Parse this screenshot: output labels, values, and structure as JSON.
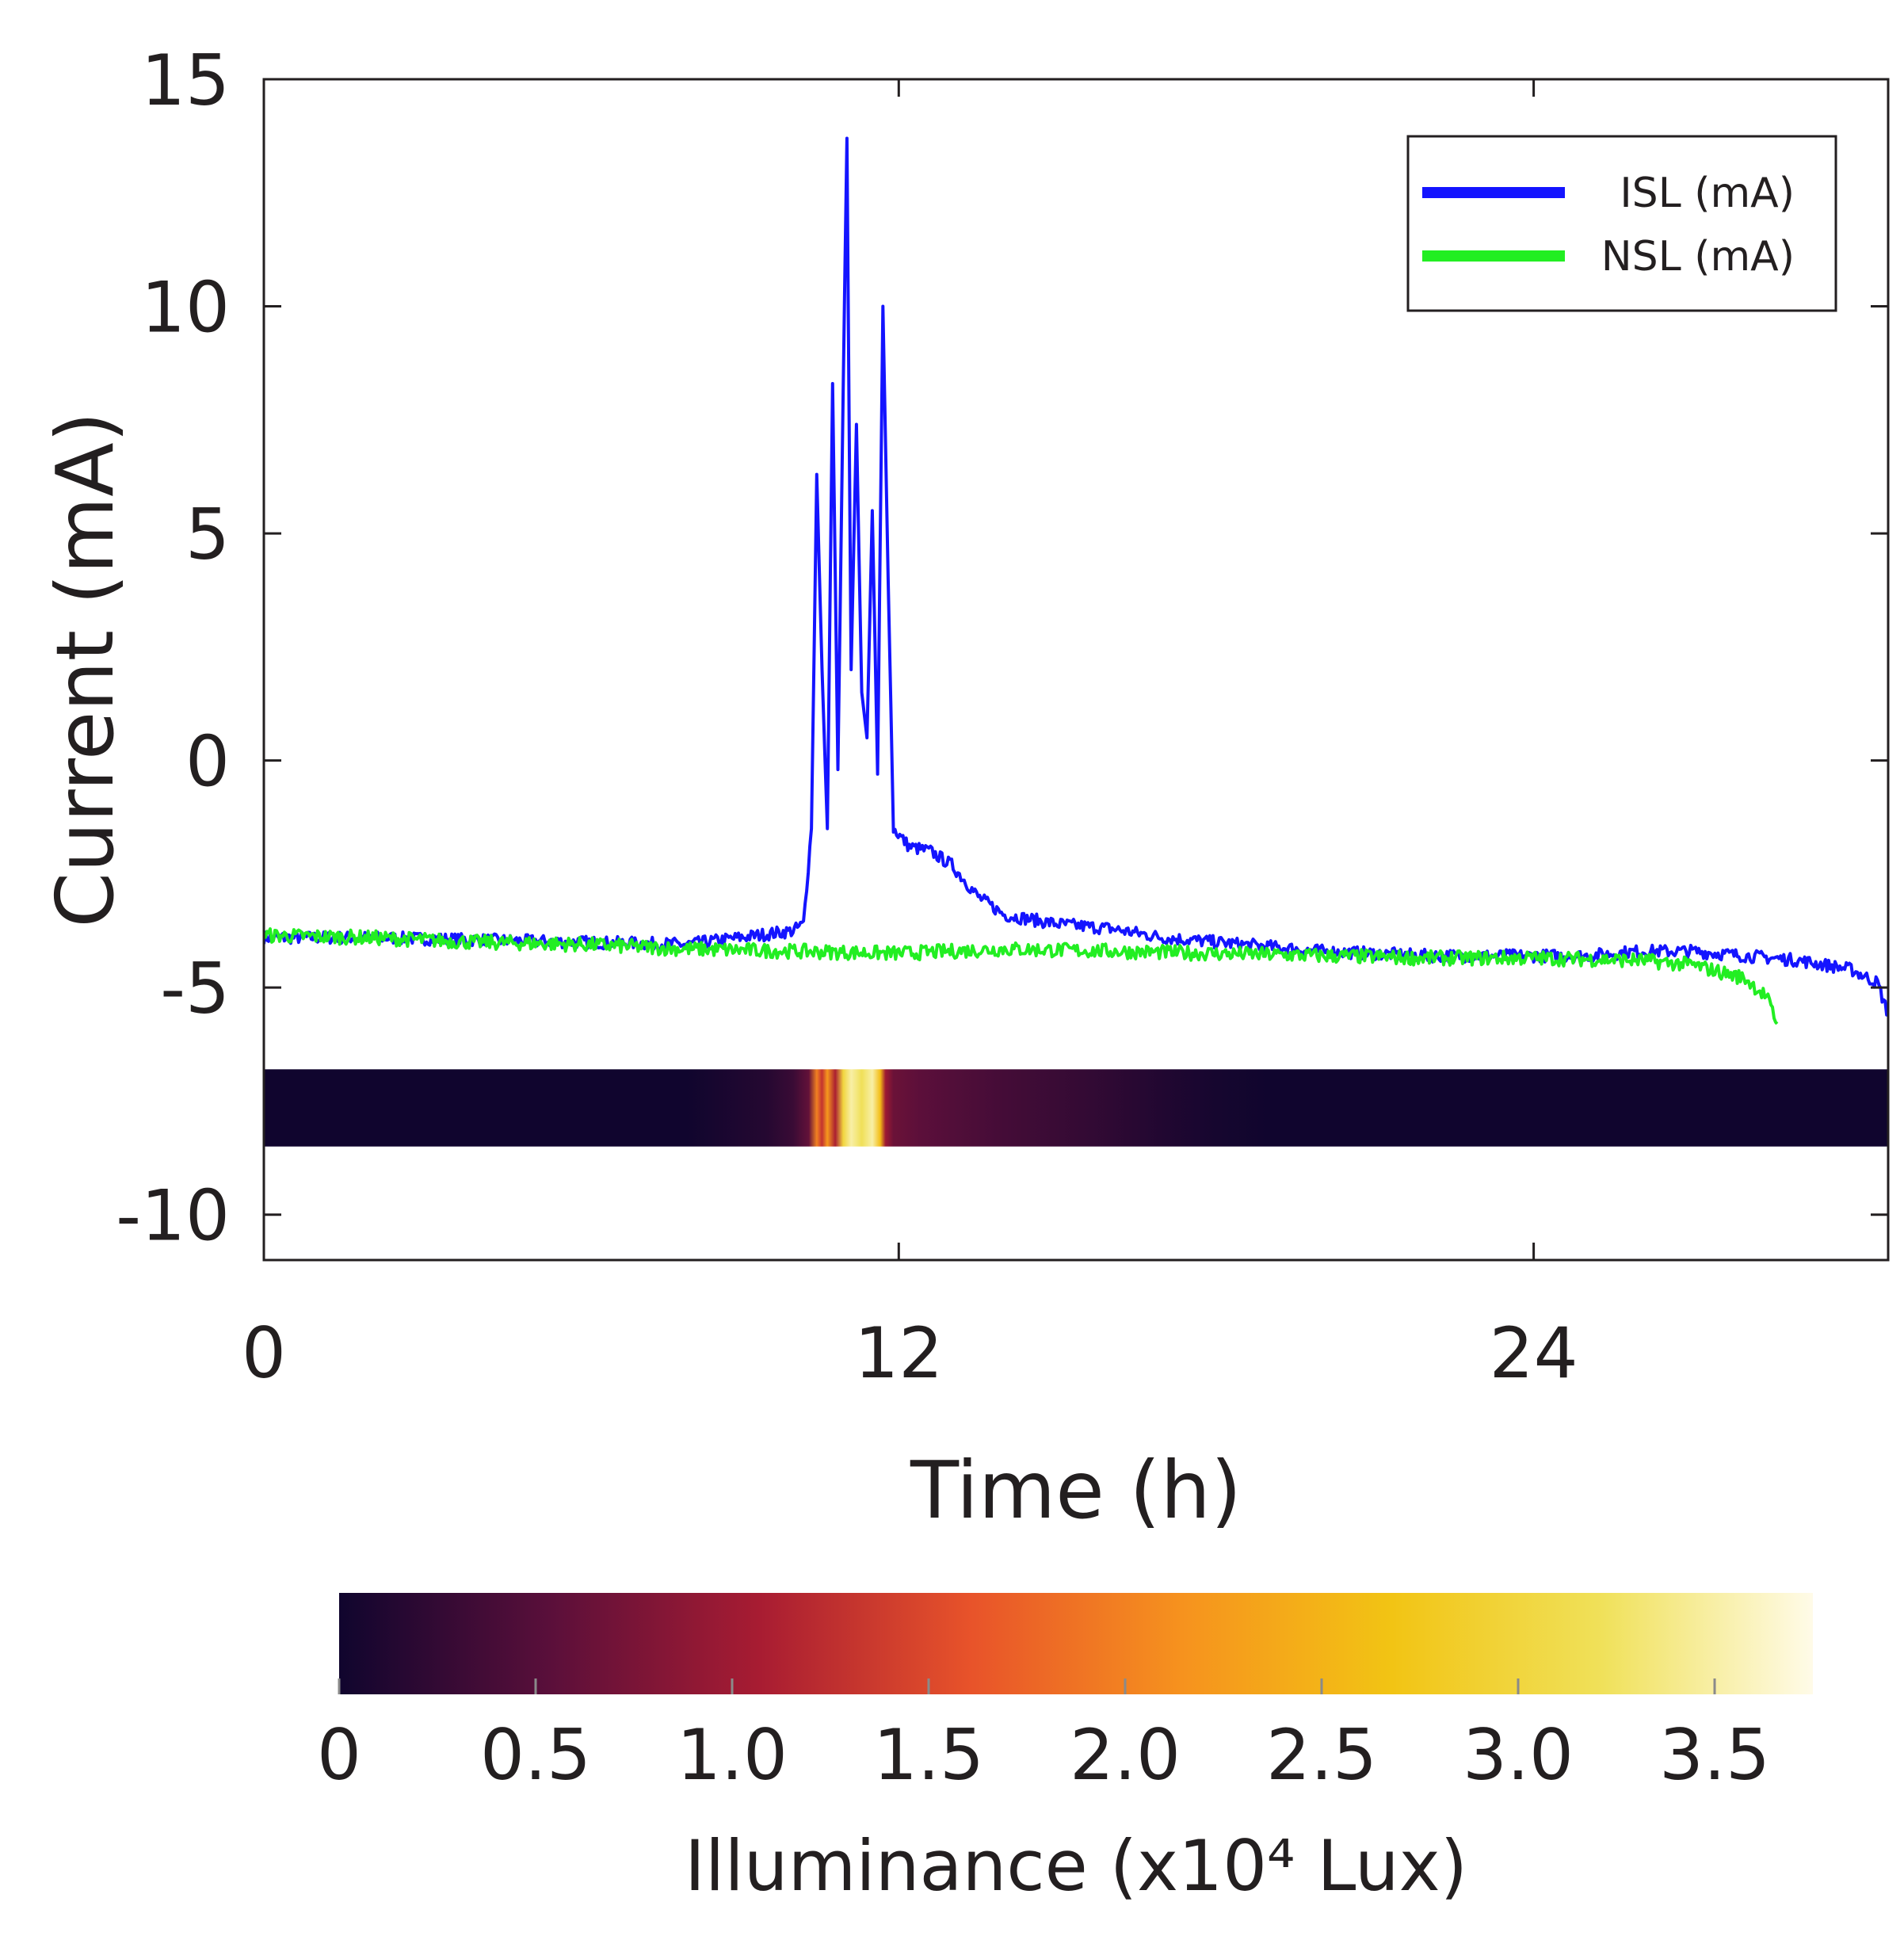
{
  "chart_data": {
    "type": "line",
    "title": "",
    "xlabel": "Time (h)",
    "ylabel": "Current (mA)",
    "xlim": [
      0,
      30.7
    ],
    "ylim": [
      -11,
      15
    ],
    "xticks": [
      0,
      12,
      24
    ],
    "xtick_labels": [
      "0",
      "12",
      "24"
    ],
    "yticks": [
      -10,
      -5,
      0,
      5,
      10,
      15
    ],
    "ytick_labels": [
      "-10",
      "-5",
      "0",
      "5",
      "10",
      "15"
    ],
    "grid": false,
    "legend_position": "top-right",
    "series": [
      {
        "name": "ISL (mA)",
        "color": "#1414ff",
        "points": [
          [
            0,
            -3.9
          ],
          [
            2,
            -3.9
          ],
          [
            4,
            -3.95
          ],
          [
            6,
            -4.0
          ],
          [
            8,
            -4.05
          ],
          [
            9,
            -3.9
          ],
          [
            10,
            -3.75
          ],
          [
            10.2,
            -3.6
          ],
          [
            10.35,
            -1.5
          ],
          [
            10.45,
            6.3
          ],
          [
            10.55,
            2.0
          ],
          [
            10.65,
            -1.5
          ],
          [
            10.75,
            8.3
          ],
          [
            10.85,
            -0.2
          ],
          [
            10.95,
            8.2
          ],
          [
            11.02,
            13.7
          ],
          [
            11.1,
            2.0
          ],
          [
            11.2,
            7.4
          ],
          [
            11.3,
            1.5
          ],
          [
            11.4,
            0.5
          ],
          [
            11.5,
            5.5
          ],
          [
            11.6,
            -0.3
          ],
          [
            11.7,
            10.0
          ],
          [
            11.8,
            4.0
          ],
          [
            11.9,
            -1.5
          ],
          [
            12.2,
            -1.9
          ],
          [
            12.6,
            -2.0
          ],
          [
            13.0,
            -2.3
          ],
          [
            13.5,
            -3.0
          ],
          [
            14,
            -3.4
          ],
          [
            15,
            -3.6
          ],
          [
            16,
            -3.7
          ],
          [
            17,
            -3.9
          ],
          [
            18,
            -4.0
          ],
          [
            19,
            -4.1
          ],
          [
            20,
            -4.2
          ],
          [
            21,
            -4.25
          ],
          [
            22,
            -4.3
          ],
          [
            23,
            -4.3
          ],
          [
            24,
            -4.3
          ],
          [
            25,
            -4.3
          ],
          [
            26,
            -4.2
          ],
          [
            27,
            -4.2
          ],
          [
            28,
            -4.3
          ],
          [
            29,
            -4.4
          ],
          [
            30,
            -4.6
          ],
          [
            30.5,
            -4.9
          ],
          [
            30.7,
            -5.6
          ]
        ]
      },
      {
        "name": "NSL (mA)",
        "color": "#22ee22",
        "points": [
          [
            0,
            -3.85
          ],
          [
            2,
            -3.9
          ],
          [
            4,
            -4.0
          ],
          [
            6,
            -4.05
          ],
          [
            8,
            -4.15
          ],
          [
            10,
            -4.2
          ],
          [
            12,
            -4.25
          ],
          [
            13,
            -4.2
          ],
          [
            14,
            -4.15
          ],
          [
            16,
            -4.2
          ],
          [
            18,
            -4.25
          ],
          [
            20,
            -4.3
          ],
          [
            22,
            -4.35
          ],
          [
            24,
            -4.35
          ],
          [
            26,
            -4.4
          ],
          [
            27,
            -4.5
          ],
          [
            28,
            -4.8
          ],
          [
            28.4,
            -5.2
          ],
          [
            28.6,
            -5.8
          ]
        ]
      }
    ],
    "illuminance_strip": {
      "y_range": [
        -8.5,
        -6.8
      ],
      "profile": [
        [
          0,
          0
        ],
        [
          8,
          0
        ],
        [
          9.5,
          0.15
        ],
        [
          10,
          0.3
        ],
        [
          10.3,
          0.6
        ],
        [
          10.45,
          2.0
        ],
        [
          10.55,
          1.3
        ],
        [
          10.65,
          2.2
        ],
        [
          10.8,
          1.1
        ],
        [
          10.95,
          3.0
        ],
        [
          11.1,
          3.5
        ],
        [
          11.3,
          3.2
        ],
        [
          11.5,
          3.5
        ],
        [
          11.65,
          2.6
        ],
        [
          11.75,
          1.0
        ],
        [
          11.9,
          0.65
        ],
        [
          12.4,
          0.55
        ],
        [
          13,
          0.48
        ],
        [
          14,
          0.38
        ],
        [
          15,
          0.3
        ],
        [
          16,
          0.22
        ],
        [
          17,
          0.12
        ],
        [
          18,
          0.04
        ],
        [
          19,
          0
        ],
        [
          30.7,
          0
        ]
      ]
    },
    "colorbar": {
      "label": "Illuminance (x10⁴ Lux)",
      "range": [
        0,
        3.75
      ],
      "ticks": [
        0,
        0.5,
        1.0,
        1.5,
        2.0,
        2.5,
        3.0,
        3.5
      ],
      "tick_labels": [
        "0",
        "0.5",
        "1.0",
        "1.5",
        "2.0",
        "2.5",
        "3.0",
        "3.5"
      ],
      "colormap": [
        "#10052e",
        "#5a0f3a",
        "#a81c32",
        "#e8532a",
        "#f6921e",
        "#f2c414",
        "#f0e15a",
        "#fffbe8"
      ]
    }
  }
}
